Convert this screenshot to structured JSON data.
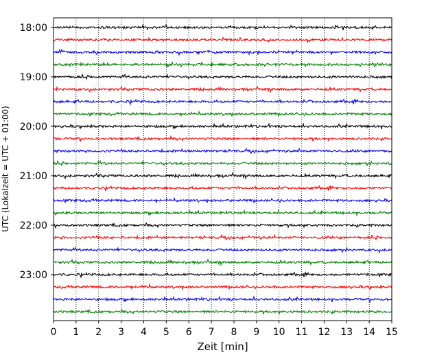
{
  "chart_data": {
    "type": "line",
    "title": "",
    "xlabel": "Zeit  [min]",
    "ylabel": "UTC (Lokalzeit = UTC + 01:00)",
    "xlim": [
      0,
      15
    ],
    "x_ticks": [
      0,
      1,
      2,
      3,
      4,
      5,
      6,
      7,
      8,
      9,
      10,
      11,
      12,
      13,
      14,
      15
    ],
    "x_tick_labels": [
      "0",
      "1",
      "2",
      "3",
      "4",
      "5",
      "6",
      "7",
      "8",
      "9",
      "10",
      "11",
      "12",
      "13",
      "14",
      "15"
    ],
    "y_tick_labels": [
      "18:00",
      "19:00",
      "20:00",
      "21:00",
      "22:00",
      "23:00"
    ],
    "y_tick_times_utc": [
      "18:00",
      "19:00",
      "20:00",
      "21:00",
      "22:00",
      "23:00"
    ],
    "trace_interval_min": 15,
    "trace_count": 24,
    "first_trace_start_utc": "18:00",
    "trace_colors": [
      "#000000",
      "#ff0000",
      "#0000ff",
      "#008000"
    ],
    "grid": {
      "x": "dotted vertical lines at each minute"
    },
    "legend": "none"
  }
}
